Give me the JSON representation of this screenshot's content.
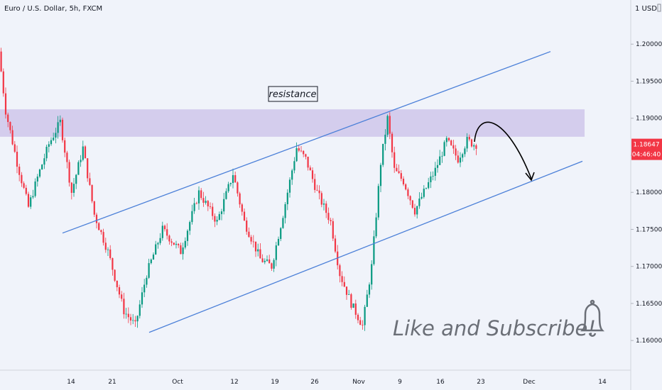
{
  "header": {
    "symbol_title": "Euro / U.S. Dollar, 5h, FXCM",
    "currency_label": "USD"
  },
  "chart_data": {
    "type": "candlestick",
    "title": "Euro / U.S. Dollar, 5h, FXCM",
    "ylabel": "USD",
    "ylim": [
      1.156,
      1.205
    ],
    "y_ticks": [
      "1.20000",
      "1.19500",
      "1.19000",
      "1.18500",
      "1.18000",
      "1.17500",
      "1.17000",
      "1.16500",
      "1.16000"
    ],
    "x_ticks": [
      "14",
      "21",
      "Oct",
      "12",
      "19",
      "26",
      "Nov",
      "9",
      "16",
      "23",
      "Dec",
      "14"
    ],
    "last_price": "1.18647",
    "countdown": "04:46:40",
    "price_path": [
      {
        "t": 0,
        "p": 1.199
      },
      {
        "t": 3,
        "p": 1.191
      },
      {
        "t": 8,
        "p": 1.184
      },
      {
        "t": 13,
        "p": 1.178
      },
      {
        "t": 17,
        "p": 1.182
      },
      {
        "t": 22,
        "p": 1.1865
      },
      {
        "t": 27,
        "p": 1.1895
      },
      {
        "t": 32,
        "p": 1.18
      },
      {
        "t": 37,
        "p": 1.186
      },
      {
        "t": 42,
        "p": 1.177
      },
      {
        "t": 48,
        "p": 1.172
      },
      {
        "t": 55,
        "p": 1.164
      },
      {
        "t": 60,
        "p": 1.162
      },
      {
        "t": 65,
        "p": 1.169
      },
      {
        "t": 72,
        "p": 1.175
      },
      {
        "t": 80,
        "p": 1.172
      },
      {
        "t": 88,
        "p": 1.18
      },
      {
        "t": 96,
        "p": 1.176
      },
      {
        "t": 103,
        "p": 1.1825
      },
      {
        "t": 108,
        "p": 1.176
      },
      {
        "t": 115,
        "p": 1.171
      },
      {
        "t": 120,
        "p": 1.17
      },
      {
        "t": 125,
        "p": 1.177
      },
      {
        "t": 131,
        "p": 1.186
      },
      {
        "t": 135,
        "p": 1.1845
      },
      {
        "t": 140,
        "p": 1.18
      },
      {
        "t": 146,
        "p": 1.176
      },
      {
        "t": 150,
        "p": 1.169
      },
      {
        "t": 155,
        "p": 1.165
      },
      {
        "t": 160,
        "p": 1.162
      },
      {
        "t": 164,
        "p": 1.17
      },
      {
        "t": 168,
        "p": 1.184
      },
      {
        "t": 171,
        "p": 1.19
      },
      {
        "t": 174,
        "p": 1.183
      },
      {
        "t": 178,
        "p": 1.1815
      },
      {
        "t": 183,
        "p": 1.1775
      },
      {
        "t": 187,
        "p": 1.18
      },
      {
        "t": 192,
        "p": 1.183
      },
      {
        "t": 197,
        "p": 1.187
      },
      {
        "t": 202,
        "p": 1.1845
      },
      {
        "t": 206,
        "p": 1.187
      },
      {
        "t": 209,
        "p": 1.18647
      }
    ],
    "total_bars": 210,
    "resistance_zone": {
      "low": 1.1875,
      "high": 1.1912,
      "label": "resistance"
    },
    "channel_upper": {
      "start": {
        "bar": 0,
        "price": 1.1745
      },
      "end": {
        "bar": 210,
        "price": 1.199
      }
    },
    "channel_lower": {
      "start": {
        "bar": 37,
        "price": 1.1611
      },
      "end": {
        "bar": 235,
        "price": 1.1842
      }
    },
    "annotation_text": "Like and Subscribe!",
    "colors": {
      "up": "#089981",
      "down": "#f23645",
      "channel": "#4a7fd8",
      "zone": "#cfc6ea",
      "background": "#f0f3fa",
      "price_label": "#f23645",
      "watermark": "#6b6f77"
    },
    "icons": [
      "bell-icon",
      "arrow-curve-icon"
    ]
  }
}
